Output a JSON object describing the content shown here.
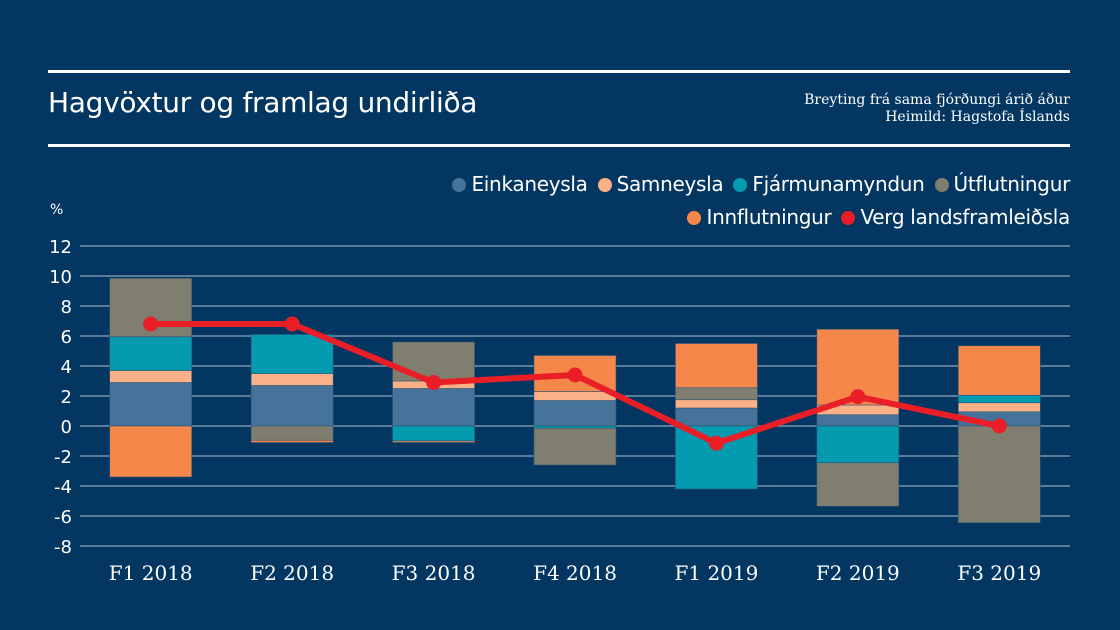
{
  "header": {
    "title": "Hagvöxtur og framlag undirliða",
    "subtitle_line1": "Breyting frá sama fjórðungi árið áður",
    "subtitle_line2": "Heimild: Hagstofa Íslands"
  },
  "colors": {
    "background": "#033762",
    "gridline": "#8fa6bd"
  },
  "chart_data": {
    "type": "bar",
    "stacked": true,
    "title": "Hagvöxtur og framlag undirliða",
    "ylabel": "%",
    "xlabel": "",
    "ylim": [
      -8,
      12
    ],
    "yticks": [
      12,
      10,
      8,
      6,
      4,
      2,
      0,
      -2,
      -4,
      -6,
      -8
    ],
    "grid": true,
    "legend_position": "top-right",
    "categories": [
      "F1 2018",
      "F2 2018",
      "F3 2018",
      "F4 2018",
      "F1 2019",
      "F2 2019",
      "F3 2019"
    ],
    "series": [
      {
        "name": "Einkaneysla",
        "type": "bar",
        "color": "#457399",
        "values": [
          2.9,
          2.7,
          2.5,
          1.7,
          1.2,
          0.75,
          0.95
        ]
      },
      {
        "name": "Samneysla",
        "type": "bar",
        "color": "#fbb187",
        "values": [
          0.8,
          0.8,
          0.5,
          0.6,
          0.55,
          0.65,
          0.6
        ]
      },
      {
        "name": "Fjármunamyndun",
        "type": "bar",
        "color": "#049aaf",
        "values": [
          2.25,
          2.6,
          -1.0,
          -0.15,
          -4.2,
          -2.45,
          0.5
        ]
      },
      {
        "name": "Útflutningur",
        "type": "bar",
        "color": "#807e6e",
        "values": [
          3.9,
          -0.95,
          2.6,
          -2.45,
          0.8,
          -2.9,
          -6.45
        ]
      },
      {
        "name": "Innflutningur",
        "type": "bar",
        "color": "#f5874a",
        "values": [
          -3.4,
          -0.15,
          -0.1,
          2.4,
          2.95,
          5.05,
          3.3
        ]
      },
      {
        "name": "Verg landsframleiðsla",
        "type": "line",
        "color": "#e91e26",
        "values": [
          6.8,
          6.8,
          2.9,
          3.4,
          -1.15,
          1.95,
          0.0
        ]
      }
    ]
  }
}
